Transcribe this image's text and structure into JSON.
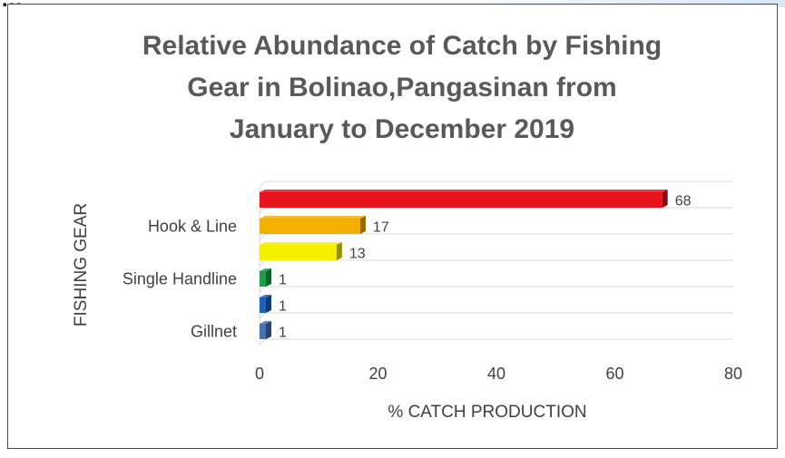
{
  "header_fragment": "...",
  "chart_data": {
    "type": "bar",
    "orientation": "horizontal",
    "title_lines": [
      "Relative Abundance of Catch by Fishing",
      "Gear in Bolinao,Pangasinan from",
      "January to December 2019"
    ],
    "xlabel": "% CATCH PRODUCTION",
    "ylabel": "FISHING GEAR",
    "xlim": [
      0,
      80
    ],
    "x_ticks": [
      "0",
      "20",
      "40",
      "60",
      "80"
    ],
    "category_labels": [
      "",
      "Hook & Line",
      "",
      "Single Handline",
      "",
      "Gillnet"
    ],
    "values": [
      68,
      17,
      13,
      1,
      1,
      1
    ],
    "bar_colors": [
      "#e8141b",
      "#f3b000",
      "#f4f000",
      "#1f9e4a",
      "#1f63b6",
      "#4a72b0"
    ],
    "grid": true,
    "legend": "none"
  }
}
